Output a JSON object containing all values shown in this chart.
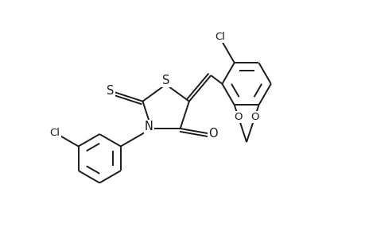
{
  "background_color": "#ffffff",
  "line_color": "#1a1a1a",
  "line_width": 1.4,
  "font_size": 9.5,
  "figsize": [
    4.6,
    3.0
  ],
  "dpi": 100,
  "xlim": [
    -4.5,
    5.5
  ],
  "ylim": [
    -3.5,
    3.5
  ]
}
